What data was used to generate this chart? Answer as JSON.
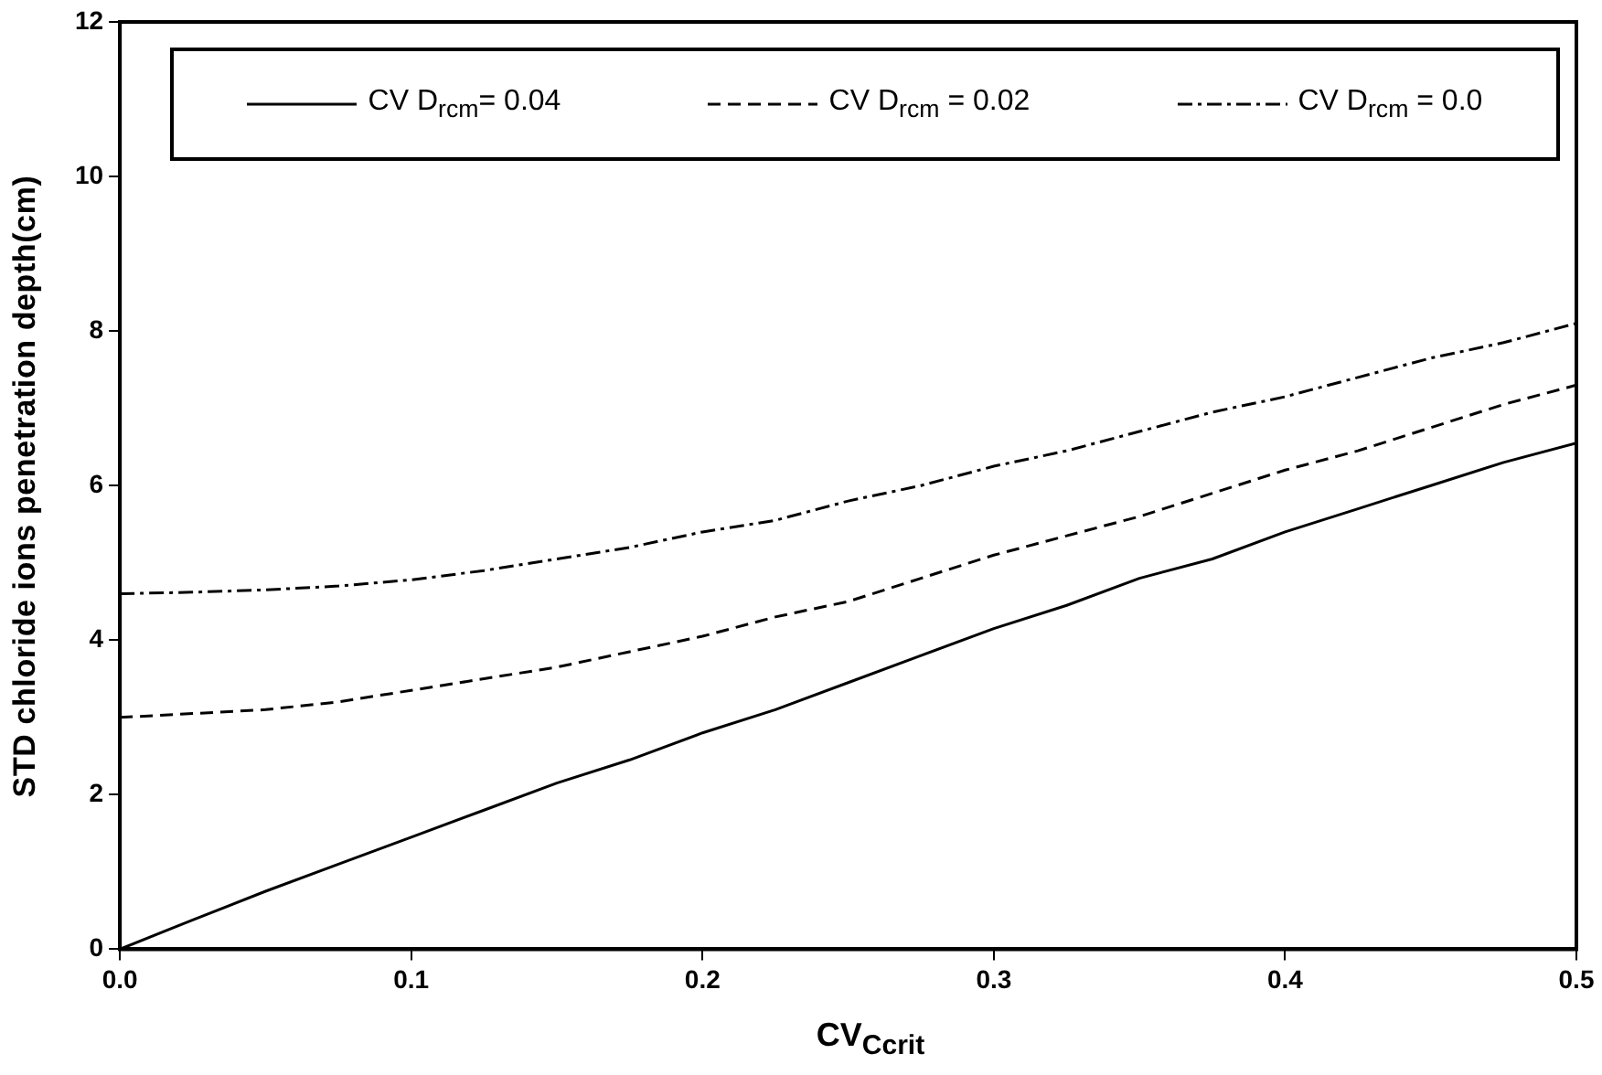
{
  "chart_data": {
    "type": "line",
    "xlabel": "CV$_{Ccrit}$",
    "ylabel": "STD chloride ions penetration depth(cm)",
    "x": [
      0,
      0.025,
      0.05,
      0.075,
      0.1,
      0.125,
      0.15,
      0.175,
      0.2,
      0.225,
      0.25,
      0.275,
      0.3,
      0.325,
      0.35,
      0.375,
      0.4,
      0.425,
      0.45,
      0.475,
      0.5
    ],
    "xlim": [
      0,
      0.5
    ],
    "xticks": [
      {
        "value": 0,
        "label": "0.0"
      },
      0.1,
      0.2,
      0.3,
      0.4,
      0.5
    ],
    "ylim": [
      0,
      12
    ],
    "yticks": [
      0,
      2,
      4,
      6,
      8,
      10,
      12
    ],
    "grid": false,
    "legend": "top",
    "marker": "none",
    "series": [
      {
        "name": "CV D$_{rcm}$= 0.04",
        "color": "#000000",
        "line_style": "solid",
        "values": [
          0,
          0.38,
          0.75,
          1.1,
          1.45,
          1.8,
          2.15,
          2.45,
          2.8,
          3.1,
          3.45,
          3.8,
          4.15,
          4.45,
          4.8,
          5.05,
          5.4,
          5.7,
          6.0,
          6.3,
          6.55
        ]
      },
      {
        "name": "CV D$_{rcm}$ = 0.02",
        "color": "#000000",
        "line_style": "dashed",
        "values": [
          3.0,
          3.05,
          3.1,
          3.2,
          3.35,
          3.5,
          3.65,
          3.85,
          4.05,
          4.3,
          4.5,
          4.8,
          5.1,
          5.35,
          5.6,
          5.9,
          6.2,
          6.45,
          6.75,
          7.05,
          7.3
        ]
      },
      {
        "name": "CV D$_{rcm}$ = 0.0",
        "color": "#000000",
        "line_style": "dashdot",
        "values": [
          4.6,
          4.62,
          4.65,
          4.7,
          4.78,
          4.9,
          5.05,
          5.2,
          5.4,
          5.55,
          5.8,
          6.0,
          6.25,
          6.45,
          6.7,
          6.95,
          7.15,
          7.4,
          7.65,
          7.85,
          8.1
        ]
      }
    ]
  }
}
